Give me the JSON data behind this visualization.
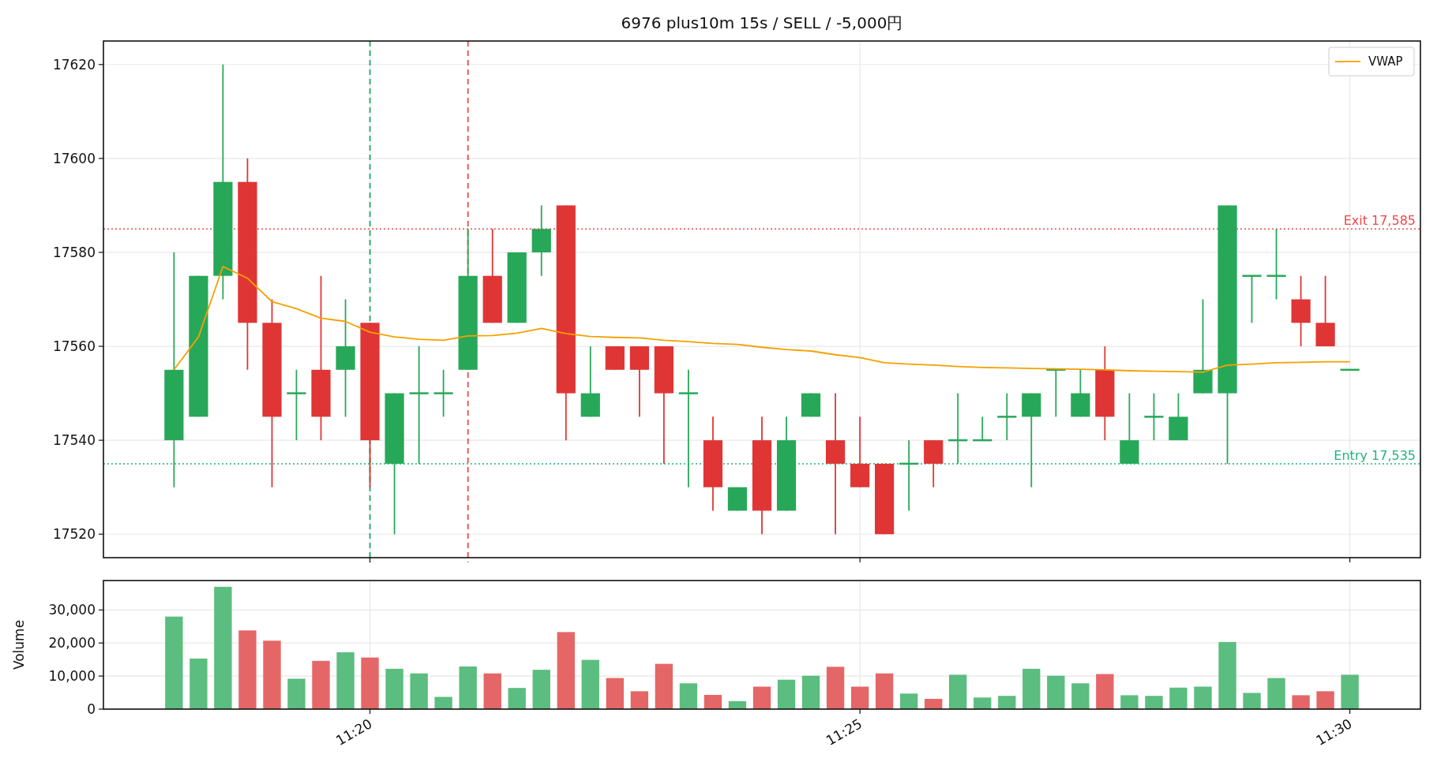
{
  "chart_data": [
    {
      "type": "candlestick",
      "title": "6976 plus10m 15s / SELL / -5,000円",
      "x": [
        11.3,
        11.30417,
        11.30833,
        11.3125,
        11.31667,
        11.32083,
        11.325,
        11.32917,
        11.33333,
        11.3375,
        11.34167,
        11.34583,
        11.35,
        11.35417,
        11.35833,
        11.3625,
        11.36667,
        11.37083,
        11.375,
        11.37917,
        11.38333,
        11.3875,
        11.39167,
        11.39583,
        11.4,
        11.40417,
        11.40833,
        11.4125,
        11.41667,
        11.42083,
        11.425,
        11.42917,
        11.43333,
        11.4375,
        11.44167,
        11.44583,
        11.45,
        11.45417,
        11.45833,
        11.4625,
        11.46667,
        11.47083,
        11.475,
        11.47917,
        11.48333,
        11.4875,
        11.49167,
        11.49583,
        11.5
      ],
      "ohlc": [
        [
          17540,
          17580,
          17530,
          17555
        ],
        [
          17545,
          17575,
          17545,
          17575
        ],
        [
          17575,
          17620,
          17570,
          17595
        ],
        [
          17595,
          17600,
          17555,
          17565
        ],
        [
          17565,
          17570,
          17530,
          17545
        ],
        [
          17550,
          17555,
          17540,
          17550
        ],
        [
          17555,
          17575,
          17540,
          17545
        ],
        [
          17555,
          17570,
          17545,
          17560
        ],
        [
          17565,
          17565,
          17530,
          17540
        ],
        [
          17535,
          17550,
          17520,
          17550
        ],
        [
          17550,
          17560,
          17535,
          17550
        ],
        [
          17550,
          17555,
          17545,
          17550
        ],
        [
          17555,
          17585,
          17555,
          17575
        ],
        [
          17575,
          17585,
          17565,
          17565
        ],
        [
          17565,
          17580,
          17565,
          17580
        ],
        [
          17580,
          17590,
          17575,
          17585
        ],
        [
          17590,
          17590,
          17540,
          17550
        ],
        [
          17545,
          17560,
          17545,
          17550
        ],
        [
          17560,
          17560,
          17555,
          17555
        ],
        [
          17560,
          17560,
          17545,
          17555
        ],
        [
          17560,
          17560,
          17535,
          17550
        ],
        [
          17550,
          17555,
          17530,
          17550
        ],
        [
          17540,
          17545,
          17525,
          17530
        ],
        [
          17525,
          17530,
          17525,
          17530
        ],
        [
          17540,
          17545,
          17520,
          17525
        ],
        [
          17525,
          17545,
          17525,
          17540
        ],
        [
          17545,
          17550,
          17545,
          17550
        ],
        [
          17540,
          17550,
          17520,
          17535
        ],
        [
          17535,
          17545,
          17530,
          17530
        ],
        [
          17535,
          17535,
          17520,
          17520
        ],
        [
          17535,
          17540,
          17525,
          17535
        ],
        [
          17540,
          17540,
          17530,
          17535
        ],
        [
          17540,
          17550,
          17535,
          17540
        ],
        [
          17540,
          17545,
          17540,
          17540
        ],
        [
          17545,
          17550,
          17540,
          17545
        ],
        [
          17545,
          17550,
          17530,
          17550
        ],
        [
          17555,
          17555,
          17545,
          17555
        ],
        [
          17545,
          17555,
          17545,
          17550
        ],
        [
          17555,
          17560,
          17540,
          17545
        ],
        [
          17535,
          17550,
          17535,
          17540
        ],
        [
          17545,
          17550,
          17540,
          17545
        ],
        [
          17540,
          17550,
          17540,
          17545
        ],
        [
          17550,
          17570,
          17550,
          17555
        ],
        [
          17550,
          17590,
          17535,
          17590
        ],
        [
          17575,
          17575,
          17565,
          17575
        ],
        [
          17575,
          17585,
          17570,
          17575
        ],
        [
          17570,
          17575,
          17560,
          17565
        ],
        [
          17565,
          17575,
          17560,
          17560
        ],
        [
          17555,
          17555,
          17555,
          17555
        ]
      ],
      "colors": [
        "#27a858",
        "#27a858",
        "#27a858",
        "#e03535",
        "#e03535",
        "#27a858",
        "#e03535",
        "#27a858",
        "#e03535",
        "#27a858",
        "#27a858",
        "#27a858",
        "#27a858",
        "#e03535",
        "#27a858",
        "#27a858",
        "#e03535",
        "#27a858",
        "#e03535",
        "#e03535",
        "#e03535",
        "#27a858",
        "#e03535",
        "#27a858",
        "#e03535",
        "#27a858",
        "#27a858",
        "#e03535",
        "#e03535",
        "#e03535",
        "#27a858",
        "#e03535",
        "#27a858",
        "#27a858",
        "#27a858",
        "#27a858",
        "#27a858",
        "#27a858",
        "#e03535",
        "#27a858",
        "#27a858",
        "#27a858",
        "#27a858",
        "#27a858",
        "#27a858",
        "#27a858",
        "#e03535",
        "#e03535",
        "#27a858"
      ],
      "series": [
        {
          "name": "VWAP",
          "type": "line",
          "color": "#f5a000",
          "values": [
            17555,
            17562,
            17577,
            17574.5,
            17569.5,
            17568,
            17566,
            17565.3,
            17563,
            17562,
            17561.5,
            17561.3,
            17562.2,
            17562.3,
            17562.8,
            17563.8,
            17562.7,
            17562.1,
            17561.9,
            17561.8,
            17561.3,
            17561,
            17560.6,
            17560.4,
            17559.8,
            17559.3,
            17559,
            17558.2,
            17557.6,
            17556.5,
            17556.2,
            17556,
            17555.7,
            17555.5,
            17555.4,
            17555.3,
            17555.2,
            17555.1,
            17555,
            17554.8,
            17554.7,
            17554.6,
            17554.5,
            17556,
            17556.2,
            17556.5,
            17556.6,
            17556.7,
            17556.7
          ]
        }
      ],
      "ref_lines": [
        {
          "axis": "x",
          "value": 11.33333,
          "color": "#1aa866",
          "line_style": "dashed"
        },
        {
          "axis": "x",
          "value": 11.35,
          "color": "#f04848",
          "line_style": "dashed"
        },
        {
          "axis": "y",
          "value": 17535,
          "label": "Entry 17,535",
          "color": "#1db57a",
          "line_style": "dotted"
        },
        {
          "axis": "y",
          "value": 17585,
          "label": "Exit 17,585",
          "color": "#f04848",
          "line_style": "dotted"
        }
      ],
      "xlim": [
        11.288,
        11.512
      ],
      "xticks": [
        {
          "value": 11.33333,
          "label": null
        },
        {
          "value": 11.41667,
          "label": null
        },
        {
          "value": 11.5,
          "label": null
        }
      ],
      "ylim": [
        17515,
        17625
      ],
      "yticks": [
        17520,
        17540,
        17560,
        17580,
        17600,
        17620
      ],
      "tick_labels": "y",
      "grid": true,
      "legend": "top right"
    },
    {
      "type": "bar",
      "ylabel": "Volume",
      "x": [
        11.3,
        11.30417,
        11.30833,
        11.3125,
        11.31667,
        11.32083,
        11.325,
        11.32917,
        11.33333,
        11.3375,
        11.34167,
        11.34583,
        11.35,
        11.35417,
        11.35833,
        11.3625,
        11.36667,
        11.37083,
        11.375,
        11.37917,
        11.38333,
        11.3875,
        11.39167,
        11.39583,
        11.4,
        11.40417,
        11.40833,
        11.4125,
        11.41667,
        11.42083,
        11.425,
        11.42917,
        11.43333,
        11.4375,
        11.44167,
        11.44583,
        11.45,
        11.45417,
        11.45833,
        11.4625,
        11.46667,
        11.47083,
        11.475,
        11.47917,
        11.48333,
        11.4875,
        11.49167,
        11.49583,
        11.5
      ],
      "values": [
        28000,
        15300,
        37000,
        23800,
        20700,
        9200,
        14600,
        17200,
        15600,
        12200,
        10800,
        3700,
        12900,
        10800,
        6400,
        11900,
        23300,
        14900,
        9400,
        5400,
        13700,
        7800,
        4300,
        2400,
        6800,
        8900,
        10100,
        12800,
        6800,
        10800,
        4700,
        3100,
        10400,
        3500,
        4000,
        12200,
        10100,
        7800,
        10600,
        4200,
        4000,
        6500,
        6800,
        20300,
        4900,
        9400,
        4200,
        5400,
        10400
      ],
      "colors": [
        "#5bbd7f",
        "#5bbd7f",
        "#5bbd7f",
        "#e56666",
        "#e56666",
        "#5bbd7f",
        "#e56666",
        "#5bbd7f",
        "#e56666",
        "#5bbd7f",
        "#5bbd7f",
        "#5bbd7f",
        "#5bbd7f",
        "#e56666",
        "#5bbd7f",
        "#5bbd7f",
        "#e56666",
        "#5bbd7f",
        "#e56666",
        "#e56666",
        "#e56666",
        "#5bbd7f",
        "#e56666",
        "#5bbd7f",
        "#e56666",
        "#5bbd7f",
        "#5bbd7f",
        "#e56666",
        "#e56666",
        "#e56666",
        "#5bbd7f",
        "#e56666",
        "#5bbd7f",
        "#5bbd7f",
        "#5bbd7f",
        "#5bbd7f",
        "#5bbd7f",
        "#5bbd7f",
        "#e56666",
        "#5bbd7f",
        "#5bbd7f",
        "#5bbd7f",
        "#5bbd7f",
        "#5bbd7f",
        "#5bbd7f",
        "#5bbd7f",
        "#e56666",
        "#e56666",
        "#5bbd7f"
      ],
      "xlim": [
        11.288,
        11.512
      ],
      "xticks": [
        {
          "value": 11.33333,
          "label": "11:20"
        },
        {
          "value": 11.41667,
          "label": "11:25"
        },
        {
          "value": 11.5,
          "label": "11:30"
        }
      ],
      "ylim": [
        0,
        38900
      ],
      "yticks": [
        0,
        {
          "value": 10000,
          "label": "10,000"
        },
        {
          "value": 20000,
          "label": "20,000"
        },
        {
          "value": 30000,
          "label": "30,000"
        }
      ],
      "grid": true
    }
  ]
}
